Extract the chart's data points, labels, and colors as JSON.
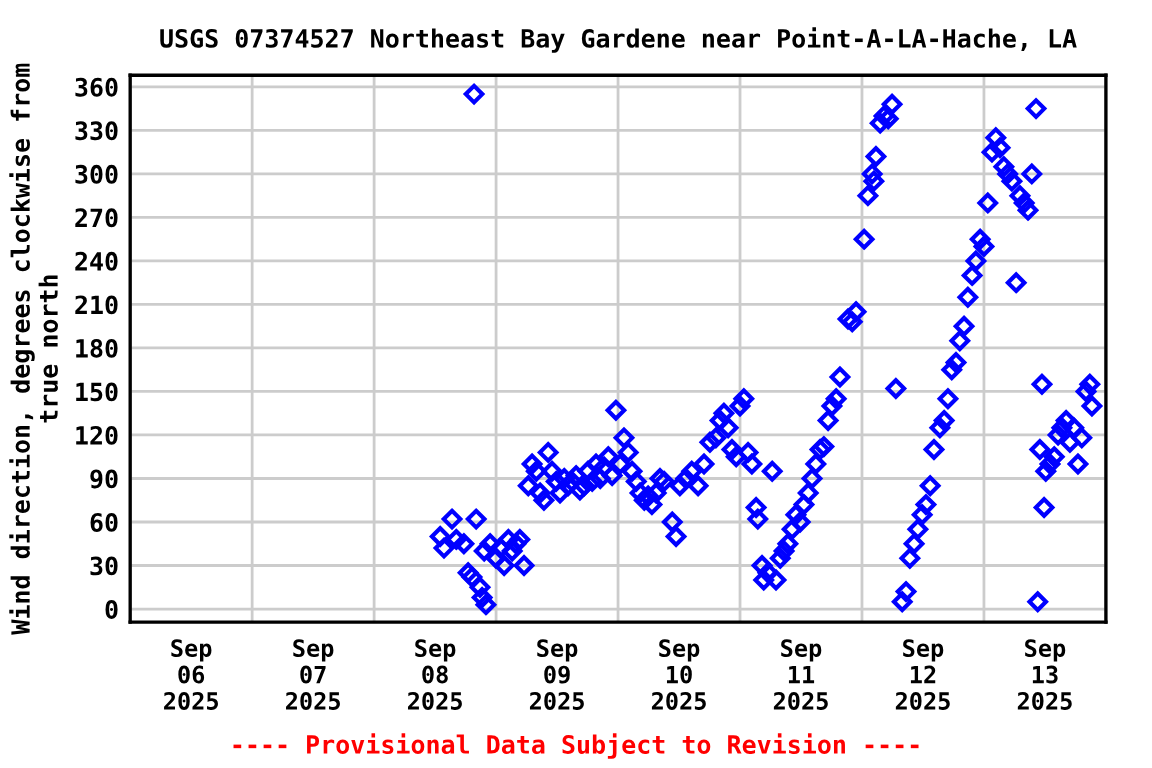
{
  "chart_data": {
    "type": "scatter",
    "title": "USGS 07374527 Northeast Bay Gardene near Point-A-LA-Hache, LA",
    "ylabel": "Wind direction, degrees clockwise from\ntrue north",
    "annotations": [
      "---- Provisional Data Subject to Revision ----"
    ],
    "marker": "diamond",
    "grid": true,
    "xlim": [
      "2025-09-06T00:00",
      "2025-09-14T00:00"
    ],
    "xticks": [
      {
        "value": "2025-09-06T00:00",
        "label": null
      },
      {
        "value": "2025-09-06T12:00",
        "label": "Sep\n06\n2025"
      },
      {
        "value": "2025-09-07T00:00",
        "label": null
      },
      {
        "value": "2025-09-07T12:00",
        "label": "Sep\n07\n2025"
      },
      {
        "value": "2025-09-08T00:00",
        "label": null
      },
      {
        "value": "2025-09-08T12:00",
        "label": "Sep\n08\n2025"
      },
      {
        "value": "2025-09-09T00:00",
        "label": null
      },
      {
        "value": "2025-09-09T12:00",
        "label": "Sep\n09\n2025"
      },
      {
        "value": "2025-09-10T00:00",
        "label": null
      },
      {
        "value": "2025-09-10T12:00",
        "label": "Sep\n10\n2025"
      },
      {
        "value": "2025-09-11T00:00",
        "label": null
      },
      {
        "value": "2025-09-11T12:00",
        "label": "Sep\n11\n2025"
      },
      {
        "value": "2025-09-12T00:00",
        "label": null
      },
      {
        "value": "2025-09-12T12:00",
        "label": "Sep\n12\n2025"
      },
      {
        "value": "2025-09-13T00:00",
        "label": null
      },
      {
        "value": "2025-09-13T12:00",
        "label": "Sep\n13\n2025"
      },
      {
        "value": "2025-09-14T00:00",
        "label": null
      }
    ],
    "ylim": [
      -9,
      368
    ],
    "yticks": [
      0,
      30,
      60,
      90,
      120,
      150,
      180,
      210,
      240,
      270,
      300,
      330,
      360
    ],
    "series": [
      {
        "color": "#0000ff",
        "x": [
          "2025-09-08T13:00",
          "2025-09-08T13:45",
          "2025-09-08T15:20",
          "2025-09-08T16:10",
          "2025-09-08T17:40",
          "2025-09-08T18:30",
          "2025-09-08T19:15",
          "2025-09-08T19:40",
          "2025-09-08T20:05",
          "2025-09-08T20:50",
          "2025-09-08T21:15",
          "2025-09-08T21:40",
          "2025-09-08T22:00",
          "2025-09-08T22:50",
          "2025-09-09T00:00",
          "2025-09-09T00:50",
          "2025-09-09T01:35",
          "2025-09-09T02:25",
          "2025-09-09T03:10",
          "2025-09-09T03:55",
          "2025-09-09T04:40",
          "2025-09-09T05:30",
          "2025-09-09T06:20",
          "2025-09-09T07:05",
          "2025-09-09T07:55",
          "2025-09-09T08:40",
          "2025-09-09T09:25",
          "2025-09-09T10:15",
          "2025-09-09T11:00",
          "2025-09-09T11:50",
          "2025-09-09T12:35",
          "2025-09-09T13:25",
          "2025-09-09T14:10",
          "2025-09-09T14:55",
          "2025-09-09T15:45",
          "2025-09-09T16:30",
          "2025-09-09T17:20",
          "2025-09-09T18:05",
          "2025-09-09T18:55",
          "2025-09-09T19:40",
          "2025-09-09T20:30",
          "2025-09-09T21:15",
          "2025-09-09T22:05",
          "2025-09-09T22:50",
          "2025-09-09T23:35",
          "2025-09-10T00:25",
          "2025-09-10T01:10",
          "2025-09-10T02:00",
          "2025-09-10T02:45",
          "2025-09-10T03:35",
          "2025-09-10T04:20",
          "2025-09-10T05:10",
          "2025-09-10T05:55",
          "2025-09-10T06:40",
          "2025-09-10T07:30",
          "2025-09-10T08:15",
          "2025-09-10T09:05",
          "2025-09-10T10:40",
          "2025-09-10T11:25",
          "2025-09-10T12:10",
          "2025-09-10T13:20",
          "2025-09-10T14:30",
          "2025-09-10T15:45",
          "2025-09-10T16:55",
          "2025-09-10T18:05",
          "2025-09-10T19:15",
          "2025-09-10T20:05",
          "2025-09-10T20:50",
          "2025-09-10T21:40",
          "2025-09-10T22:25",
          "2025-09-10T23:15",
          "2025-09-11T00:00",
          "2025-09-11T00:45",
          "2025-09-11T01:35",
          "2025-09-11T02:20",
          "2025-09-11T03:10",
          "2025-09-11T03:30",
          "2025-09-11T04:20",
          "2025-09-11T04:40",
          "2025-09-11T05:30",
          "2025-09-11T06:20",
          "2025-09-11T07:05",
          "2025-09-11T07:55",
          "2025-09-11T08:40",
          "2025-09-11T09:25",
          "2025-09-11T10:15",
          "2025-09-11T11:00",
          "2025-09-11T11:50",
          "2025-09-11T12:35",
          "2025-09-11T13:25",
          "2025-09-11T14:10",
          "2025-09-11T14:55",
          "2025-09-11T15:45",
          "2025-09-11T16:30",
          "2025-09-11T17:20",
          "2025-09-11T18:05",
          "2025-09-11T18:55",
          "2025-09-11T19:40",
          "2025-09-11T21:15",
          "2025-09-11T22:05",
          "2025-09-11T22:50",
          "2025-09-12T00:25",
          "2025-09-12T01:10",
          "2025-09-12T02:00",
          "2025-09-12T02:20",
          "2025-09-12T02:45",
          "2025-09-12T03:35",
          "2025-09-12T04:20",
          "2025-09-12T05:10",
          "2025-09-12T05:55",
          "2025-09-12T06:40",
          "2025-09-12T07:55",
          "2025-09-12T08:40",
          "2025-09-12T09:25",
          "2025-09-12T10:15",
          "2025-09-12T11:00",
          "2025-09-12T11:50",
          "2025-09-12T12:35",
          "2025-09-12T13:25",
          "2025-09-12T14:10",
          "2025-09-12T15:20",
          "2025-09-12T16:10",
          "2025-09-12T16:55",
          "2025-09-12T17:40",
          "2025-09-12T18:30",
          "2025-09-12T19:15",
          "2025-09-12T20:05",
          "2025-09-12T20:50",
          "2025-09-12T21:40",
          "2025-09-12T22:25",
          "2025-09-12T23:15",
          "2025-09-13T00:00",
          "2025-09-13T00:45",
          "2025-09-13T01:35",
          "2025-09-13T02:20",
          "2025-09-13T03:10",
          "2025-09-13T03:55",
          "2025-09-13T04:40",
          "2025-09-13T05:30",
          "2025-09-13T06:20",
          "2025-09-13T07:05",
          "2025-09-13T07:55",
          "2025-09-13T08:40",
          "2025-09-13T09:25",
          "2025-09-13T10:15",
          "2025-09-13T10:35",
          "2025-09-13T11:00",
          "2025-09-13T11:25",
          "2025-09-13T11:50",
          "2025-09-13T12:10",
          "2025-09-13T13:00",
          "2025-09-13T13:50",
          "2025-09-13T14:35",
          "2025-09-13T15:20",
          "2025-09-13T16:10",
          "2025-09-13T16:55",
          "2025-09-13T17:40",
          "2025-09-13T18:30",
          "2025-09-13T19:15",
          "2025-09-13T20:05",
          "2025-09-13T20:50",
          "2025-09-13T21:15"
        ],
        "values": [
          50,
          42,
          62,
          48,
          45,
          25,
          22,
          355,
          62,
          15,
          8,
          40,
          3,
          45,
          35,
          42,
          30,
          48,
          40,
          45,
          48,
          30,
          85,
          100,
          95,
          80,
          75,
          108,
          95,
          88,
          80,
          90,
          85,
          88,
          92,
          82,
          85,
          95,
          88,
          100,
          90,
          98,
          105,
          92,
          137,
          100,
          118,
          108,
          95,
          88,
          80,
          75,
          78,
          72,
          80,
          90,
          88,
          60,
          50,
          85,
          90,
          95,
          85,
          100,
          115,
          118,
          130,
          135,
          125,
          110,
          105,
          140,
          145,
          108,
          100,
          70,
          62,
          30,
          20,
          25,
          95,
          20,
          35,
          40,
          45,
          55,
          65,
          60,
          72,
          80,
          90,
          100,
          110,
          112,
          130,
          140,
          145,
          160,
          200,
          198,
          205,
          255,
          285,
          300,
          295,
          312,
          335,
          340,
          338,
          348,
          152,
          5,
          12,
          35,
          45,
          55,
          65,
          72,
          85,
          110,
          125,
          130,
          145,
          165,
          170,
          185,
          195,
          215,
          230,
          240,
          255,
          250,
          280,
          315,
          325,
          318,
          305,
          300,
          295,
          225,
          285,
          280,
          275,
          300,
          345,
          5,
          110,
          155,
          70,
          95,
          100,
          105,
          120,
          125,
          130,
          115,
          125,
          100,
          118,
          150,
          155,
          140
        ]
      }
    ]
  }
}
